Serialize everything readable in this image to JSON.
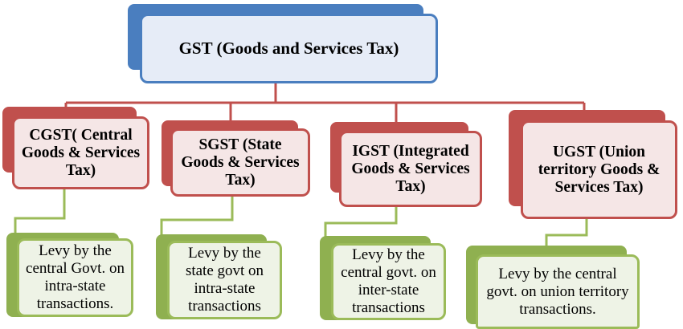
{
  "root": {
    "label": "GST (Goods and Services Tax)"
  },
  "categories": [
    {
      "label": "CGST( Central Goods & Services Tax)",
      "description": "Levy by the central Govt. on intra-state transactions."
    },
    {
      "label": "SGST (State Goods & Services Tax)",
      "description": "Levy by the state govt on intra-state transactions"
    },
    {
      "label": "IGST (Integrated Goods & Services Tax)",
      "description": "Levy by the central govt. on inter-state transactions"
    },
    {
      "label": "UGST (Union territory Goods & Services Tax)",
      "description": "Levy by the central govt. on union territory transactions."
    }
  ],
  "colors": {
    "root_border": "#4a7ebf",
    "root_fill": "#e6ecf7",
    "category_border": "#c0504d",
    "category_fill": "#f5e6e6",
    "description_border": "#9bbb59",
    "description_fill": "#eef3e6"
  }
}
